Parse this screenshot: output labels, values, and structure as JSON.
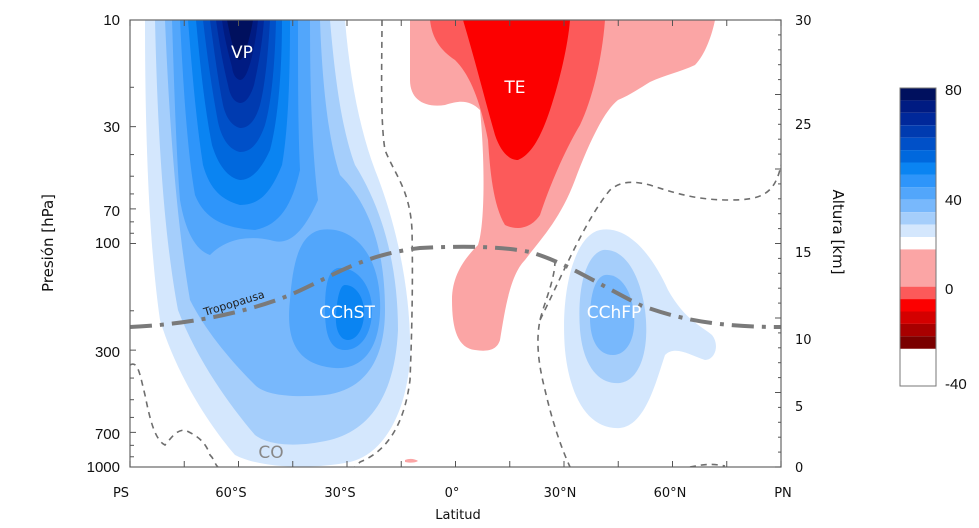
{
  "chart_data": {
    "type": "heatmap",
    "subtype": "filled-contour",
    "title": "",
    "xlabel": "Latitud",
    "ylabel_left": "Presión [hPa]",
    "ylabel_right": "Altura [km]",
    "x_ticks": [
      "PS",
      "60°S",
      "30°S",
      "0°",
      "30°N",
      "60°N",
      "PN"
    ],
    "x_range": [
      -90,
      90
    ],
    "y_left_ticks": [
      "10",
      "30",
      "70",
      "100",
      "300",
      "700",
      "1000"
    ],
    "y_left_range_hPa": [
      1000,
      10
    ],
    "y_right_ticks": [
      "30",
      "25",
      "15",
      "10",
      "5",
      "0"
    ],
    "y_right_range_km": [
      0,
      30
    ],
    "colorbar": {
      "ticks": [
        "80",
        "40",
        "0",
        "-40"
      ],
      "range": [
        -40,
        80
      ],
      "step": 10,
      "levels": [
        {
          "value": 75,
          "color": "#00105e"
        },
        {
          "value": 70,
          "color": "#001b82"
        },
        {
          "value": 65,
          "color": "#00289a"
        },
        {
          "value": 60,
          "color": "#003bb0"
        },
        {
          "value": 55,
          "color": "#0050c8"
        },
        {
          "value": 50,
          "color": "#0068dd"
        },
        {
          "value": 45,
          "color": "#0a84f2"
        },
        {
          "value": 40,
          "color": "#2e95fa"
        },
        {
          "value": 35,
          "color": "#52a6fb"
        },
        {
          "value": 30,
          "color": "#78b8fc"
        },
        {
          "value": 25,
          "color": "#a5cefb"
        },
        {
          "value": 20,
          "color": "#d4e7fd"
        },
        {
          "value": 10,
          "color": "#ffffff"
        },
        {
          "value": -5,
          "color": "#fba5a5"
        },
        {
          "value": -10,
          "color": "#fc5a5a"
        },
        {
          "value": -15,
          "color": "#fc0000"
        },
        {
          "value": -20,
          "color": "#d40000"
        },
        {
          "value": -25,
          "color": "#a80000"
        },
        {
          "value": -35,
          "color": "#7a0000"
        }
      ]
    },
    "annotations": [
      {
        "label": "VP",
        "lat": -55,
        "hPa": 12
      },
      {
        "label": "TE",
        "lat": 18,
        "hPa": 20
      },
      {
        "label": "CChST",
        "lat": -25,
        "hPa": 200
      },
      {
        "label": "CChFP",
        "lat": 42,
        "hPa": 200
      },
      {
        "label": "CO",
        "lat": -48,
        "hPa": 950
      },
      {
        "label": "Tropopausa",
        "lat": -60,
        "hPa": 180
      }
    ],
    "tropopause_hPa": [
      {
        "lat": -90,
        "hPa": 220
      },
      {
        "lat": -60,
        "hPa": 210
      },
      {
        "lat": -30,
        "hPa": 140
      },
      {
        "lat": -10,
        "hPa": 105
      },
      {
        "lat": 0,
        "hPa": 100
      },
      {
        "lat": 15,
        "hPa": 105
      },
      {
        "lat": 30,
        "hPa": 130
      },
      {
        "lat": 45,
        "hPa": 190
      },
      {
        "lat": 60,
        "hPa": 215
      },
      {
        "lat": 90,
        "hPa": 220
      }
    ],
    "zero_contour_style": "dashed",
    "tropopause_style": "dash-dot"
  }
}
